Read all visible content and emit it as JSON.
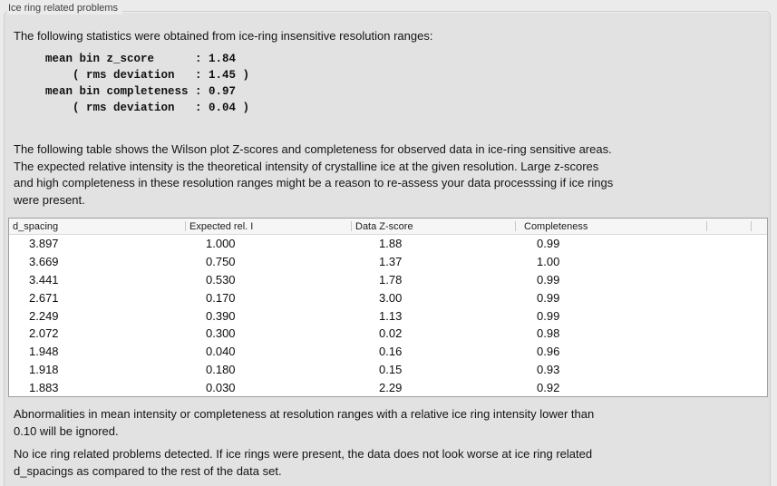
{
  "groupbox": {
    "title": "Ice ring related problems"
  },
  "panel": {
    "intro": "The following statistics were obtained from ice-ring insensitive resolution ranges:",
    "stats_block": "mean bin z_score      : 1.84\n    ( rms deviation   : 1.45 )\nmean bin completeness : 0.97\n    ( rms deviation   : 0.04 )",
    "table_description": "The following table shows the Wilson plot Z-scores and completeness for observed data in ice-ring sensitive areas.\nThe expected relative intensity is the theoretical intensity of crystalline ice at the given resolution. Large z-scores\nand high completeness in these resolution ranges might be a reason to re-assess your data processsing if ice rings\nwere present.",
    "ignore_note": "Abnormalities in mean intensity or completeness at resolution ranges with a relative ice ring intensity lower than\n0.10 will be ignored.",
    "conclusion": "No ice ring related problems detected. If ice rings were present, the data does not look worse at ice ring related\nd_spacings as compared to the rest of the data set."
  },
  "table": {
    "columns": [
      "d_spacing",
      "Expected rel. I",
      "Data Z-score",
      "Completeness"
    ],
    "rows": [
      [
        "3.897",
        "1.000",
        "1.88",
        "0.99"
      ],
      [
        "3.669",
        "0.750",
        "1.37",
        "1.00"
      ],
      [
        "3.441",
        "0.530",
        "1.78",
        "0.99"
      ],
      [
        "2.671",
        "0.170",
        "3.00",
        "0.99"
      ],
      [
        "2.249",
        "0.390",
        "1.13",
        "0.99"
      ],
      [
        "2.072",
        "0.300",
        "0.02",
        "0.98"
      ],
      [
        "1.948",
        "0.040",
        "0.16",
        "0.96"
      ],
      [
        "1.918",
        "0.180",
        "0.15",
        "0.93"
      ],
      [
        "1.883",
        "0.030",
        "2.29",
        "0.92"
      ]
    ]
  },
  "colors": {
    "outer_background": "#ebebeb",
    "panel_background": "#e2e2e2",
    "panel_border": "#cecece",
    "table_border": "#a0a0a0",
    "table_header_background": "#f6f6f6",
    "text": "#141414"
  }
}
